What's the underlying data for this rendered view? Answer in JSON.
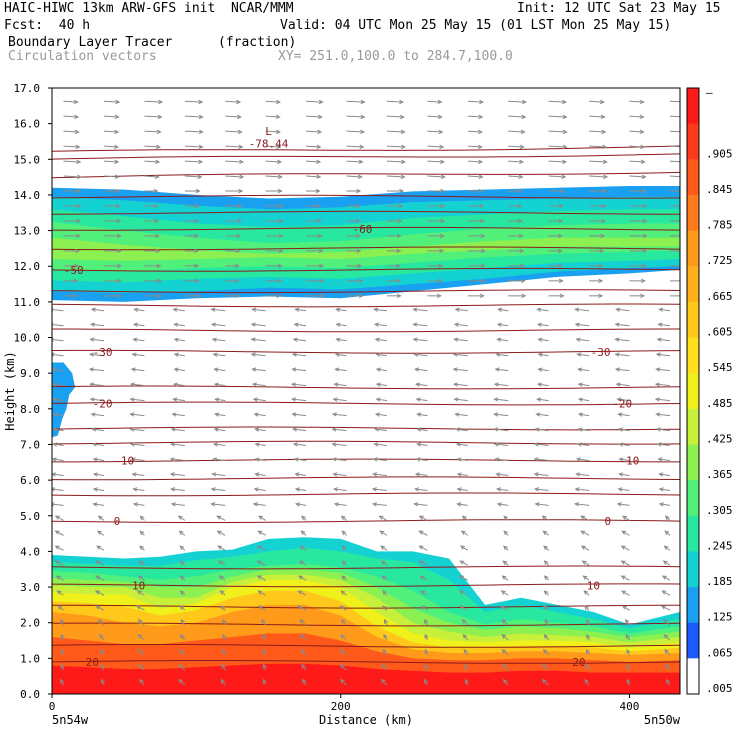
{
  "header": {
    "title_left": "HAIC-HIWC 13km ARW-GFS init  NCAR/MMM",
    "init": "Init: 12 UTC Sat 23 May 15",
    "fcst": "Fcst:  40 h",
    "valid": "Valid: 04 UTC Mon 25 May 15 (01 LST Mon 25 May 15)",
    "field": "Boundary Layer Tracer",
    "units": "(fraction)",
    "overlay": "Circulation vectors",
    "xy": "XY= 251.0,100.0 to 284.7,100.0"
  },
  "colors": {
    "contour": "#8b1a1a",
    "vector": "#8a8a8a"
  },
  "chart_data": {
    "type": "heatmap",
    "title": "Boundary Layer Tracer",
    "xlabel": "Distance (km)",
    "ylabel": "Height (km)",
    "xlim": [
      0,
      435
    ],
    "ylim": [
      0,
      17
    ],
    "x_ticks": [
      "0",
      "200",
      "400"
    ],
    "x_tick_values": [
      0,
      200,
      400
    ],
    "y_ticks": [
      "0.0",
      "1.0",
      "2.0",
      "3.0",
      "4.0",
      "5.0",
      "6.0",
      "7.0",
      "8.0",
      "9.0",
      "10.0",
      "11.0",
      "12.0",
      "13.0",
      "14.0",
      "15.0",
      "16.0",
      "17.0"
    ],
    "x_end_labels": {
      "left": "5n54w",
      "right": "5n50w"
    },
    "colorbar": {
      "levels": [
        "–",
        ".905",
        ".845",
        ".785",
        ".725",
        ".665",
        ".605",
        ".545",
        ".485",
        ".425",
        ".365",
        ".305",
        ".245",
        ".185",
        ".125",
        ".065",
        ".005"
      ],
      "colors": [
        "#ff1a1a",
        "#ff3a1a",
        "#ff5a1a",
        "#ff7a1a",
        "#ff9a1a",
        "#ffb01a",
        "#ffc81a",
        "#ffe01a",
        "#f0f01a",
        "#c8f03a",
        "#8cf050",
        "#50f07a",
        "#28e8a0",
        "#14d2d2",
        "#1aa0f0",
        "#1a5aff",
        "#ffffff"
      ]
    },
    "contour_labels": [
      {
        "text": "-78.44",
        "x": 150,
        "y": 15.45
      },
      {
        "text": "L",
        "x": 150,
        "y": 15.8
      },
      {
        "text": "-60",
        "x": 215,
        "y": 13.05
      },
      {
        "text": "-50",
        "x": 15,
        "y": 11.9
      },
      {
        "text": "-30",
        "x": 35,
        "y": 9.6
      },
      {
        "text": "-30",
        "x": 380,
        "y": 9.6
      },
      {
        "text": "-20",
        "x": 35,
        "y": 8.15
      },
      {
        "text": "-20",
        "x": 395,
        "y": 8.15
      },
      {
        "text": "-10",
        "x": 50,
        "y": 6.55
      },
      {
        "text": "-10",
        "x": 400,
        "y": 6.55
      },
      {
        "text": "0",
        "x": 45,
        "y": 4.85
      },
      {
        "text": "0",
        "x": 385,
        "y": 4.85
      },
      {
        "text": "10",
        "x": 60,
        "y": 3.05
      },
      {
        "text": "10",
        "x": 375,
        "y": 3.05
      },
      {
        "text": "20",
        "x": 28,
        "y": 0.9
      },
      {
        "text": "20",
        "x": 365,
        "y": 0.9
      }
    ],
    "contour_levels_y": [
      0.9,
      1.35,
      1.95,
      2.45,
      3.05,
      3.55,
      4.85,
      5.6,
      6.05,
      6.55,
      7.05,
      7.45,
      8.15,
      8.6,
      9.6,
      10.2,
      10.9,
      11.3,
      11.9,
      12.5,
      13.05,
      13.5,
      13.95,
      14.5,
      15.0,
      15.2
    ]
  }
}
